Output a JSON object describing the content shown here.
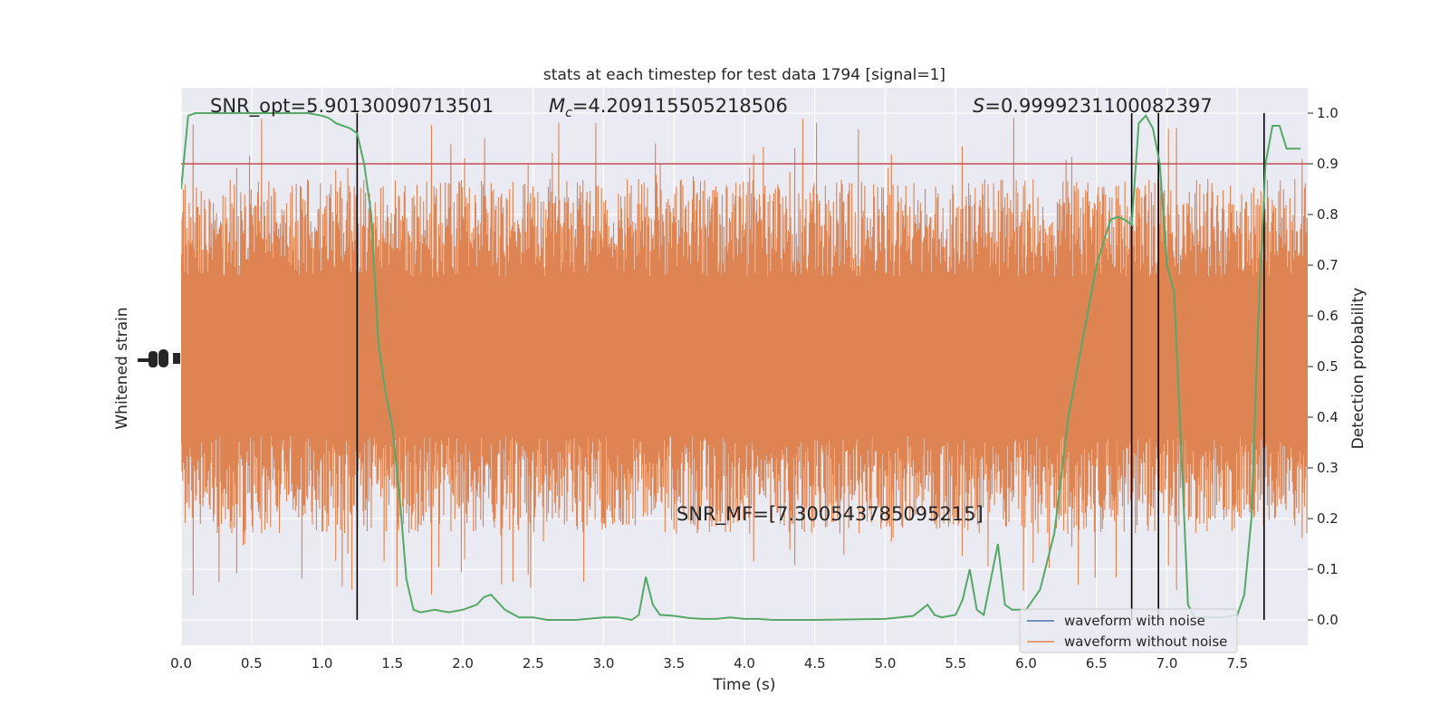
{
  "chart_data": {
    "type": "line",
    "title": "stats at each timestep for test data 1794 [signal=1]",
    "xlabel": "Time (s)",
    "ylabel_left": "Whitened strain",
    "ylabel_right": "Detection probability",
    "xlim": [
      0,
      8
    ],
    "ylim_right": [
      -0.05,
      1.05
    ],
    "x_ticks": [
      "0.0",
      "0.5",
      "1.0",
      "1.5",
      "2.0",
      "2.5",
      "3.0",
      "3.5",
      "4.0",
      "4.5",
      "5.0",
      "5.5",
      "6.0",
      "6.5",
      "7.0",
      "7.5"
    ],
    "y_right_ticks": [
      "0.0",
      "0.1",
      "0.2",
      "0.3",
      "0.4",
      "0.5",
      "0.6",
      "0.7",
      "0.8",
      "0.9",
      "1.0"
    ],
    "grid": true,
    "legend_position": "lower right",
    "annotations": {
      "snr_opt": "SNR_opt=5.90130090713501",
      "mc_symbol": "M",
      "mc_sub": "c",
      "mc_value": "=4.209115505218506",
      "s_symbol": "S",
      "s_value": "=0.9999231100082397",
      "snr_mf": "SNR_MF=[7.300543785095215]"
    },
    "threshold": 0.9,
    "vertical_lines_x": [
      1.25,
      6.75,
      6.94,
      7.69
    ],
    "series": [
      {
        "name": "waveform with noise",
        "color": "#4c72b0",
        "note_values": "dense noise trace, fully hidden beneath the orange trace"
      },
      {
        "name": "waveform without noise",
        "color": "#dd8452",
        "envelope_typical_amplitude_prob_units": 0.35,
        "center_prob_units": 0.52
      },
      {
        "name": "",
        "color": "#55a868",
        "x": [
          0.0,
          0.05,
          0.1,
          0.2,
          0.3,
          0.4,
          0.5,
          0.6,
          0.7,
          0.8,
          0.9,
          1.0,
          1.05,
          1.1,
          1.15,
          1.2,
          1.25,
          1.3,
          1.35,
          1.4,
          1.45,
          1.5,
          1.55,
          1.6,
          1.65,
          1.7,
          1.8,
          1.9,
          2.0,
          2.1,
          2.15,
          2.2,
          2.3,
          2.4,
          2.5,
          2.6,
          2.8,
          3.0,
          3.1,
          3.2,
          3.25,
          3.3,
          3.35,
          3.4,
          3.5,
          3.6,
          3.7,
          3.8,
          3.9,
          4.0,
          4.1,
          4.2,
          4.5,
          5.0,
          5.1,
          5.2,
          5.3,
          5.35,
          5.4,
          5.5,
          5.55,
          5.6,
          5.65,
          5.7,
          5.8,
          5.85,
          5.9,
          6.0,
          6.1,
          6.2,
          6.3,
          6.4,
          6.5,
          6.6,
          6.65,
          6.7,
          6.75,
          6.8,
          6.85,
          6.9,
          6.95,
          7.0,
          7.05,
          7.1,
          7.15,
          7.2,
          7.25,
          7.3,
          7.4,
          7.5,
          7.55,
          7.6,
          7.65,
          7.7,
          7.75,
          7.8,
          7.85,
          7.9,
          7.95
        ],
        "values": [
          0.85,
          0.995,
          1.0,
          1.0,
          1.0,
          1.0,
          1.0,
          1.0,
          1.0,
          1.0,
          1.0,
          0.995,
          0.99,
          0.98,
          0.975,
          0.97,
          0.96,
          0.9,
          0.8,
          0.55,
          0.45,
          0.38,
          0.25,
          0.08,
          0.02,
          0.015,
          0.02,
          0.015,
          0.02,
          0.03,
          0.045,
          0.05,
          0.02,
          0.005,
          0.005,
          0.0,
          0.0,
          0.005,
          0.005,
          0.0,
          0.01,
          0.085,
          0.03,
          0.01,
          0.008,
          0.004,
          0.002,
          0.002,
          0.005,
          0.002,
          0.002,
          0.0,
          0.0,
          0.002,
          0.005,
          0.008,
          0.03,
          0.01,
          0.005,
          0.01,
          0.04,
          0.1,
          0.02,
          0.01,
          0.15,
          0.03,
          0.02,
          0.02,
          0.06,
          0.17,
          0.4,
          0.55,
          0.7,
          0.79,
          0.795,
          0.79,
          0.78,
          0.98,
          0.995,
          0.97,
          0.9,
          0.7,
          0.65,
          0.35,
          0.03,
          0.005,
          0.005,
          0.005,
          0.005,
          0.01,
          0.05,
          0.2,
          0.6,
          0.9,
          0.975,
          0.975,
          0.93,
          0.93,
          0.93
        ]
      }
    ]
  }
}
